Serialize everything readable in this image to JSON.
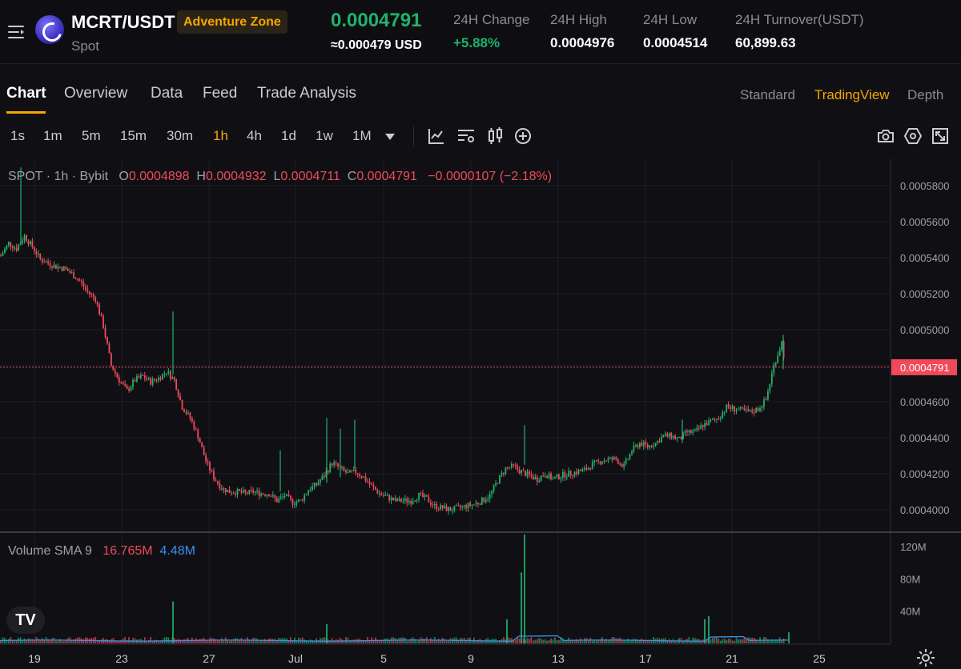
{
  "header": {
    "menu_icon": "hamburger-icon",
    "pair": "MCRT/USDT",
    "zone_badge": "Adventure Zone",
    "market_type": "Spot",
    "last_price": "0.0004791",
    "usd_price": "≈0.000479 USD",
    "stats": [
      {
        "label": "24H Change",
        "value": "+5.88%",
        "color": "#20b26c"
      },
      {
        "label": "24H High",
        "value": "0.0004976",
        "color": "#ffffff"
      },
      {
        "label": "24H Low",
        "value": "0.0004514",
        "color": "#ffffff"
      },
      {
        "label": "24H Turnover(USDT)",
        "value": "60,899.63",
        "color": "#ffffff"
      }
    ]
  },
  "tabs": [
    "Chart",
    "Overview",
    "Data",
    "Feed",
    "Trade Analysis"
  ],
  "active_tab": "Chart",
  "view_modes": [
    "Standard",
    "TradingView",
    "Depth"
  ],
  "active_view_mode": "TradingView",
  "intervals": [
    "1s",
    "1m",
    "5m",
    "15m",
    "30m",
    "1h",
    "4h",
    "1d",
    "1w",
    "1M"
  ],
  "active_interval": "1h",
  "toolbar_icons": [
    "indicators-icon",
    "chart-settings-icon",
    "candle-type-icon",
    "add-icon",
    "camera-icon",
    "settings-hex-icon",
    "fullscreen-icon"
  ],
  "legend": {
    "source": "SPOT · 1h · Bybit",
    "o_label": "O",
    "o": "0.0004898",
    "h_label": "H",
    "h": "0.0004932",
    "l_label": "L",
    "l": "0.0004711",
    "c_label": "C",
    "c": "0.0004791",
    "change": "−0.0000107 (−2.18%)"
  },
  "volume_legend": {
    "label": "Volume SMA 9",
    "vol": "16.765M",
    "sma": "4.48M"
  },
  "colors": {
    "up": "#20b26c",
    "down": "#f04a5a",
    "accent": "#f7a600",
    "sma": "#3b8ff0"
  },
  "chart_data": {
    "type": "candlestick",
    "price_axis_ticks": [
      "0.0005800",
      "0.0005600",
      "0.0005400",
      "0.0005200",
      "0.0005000",
      "0.0004800",
      "0.0004600",
      "0.0004400",
      "0.0004200",
      "0.0004000"
    ],
    "price_range": [
      0.000388,
      0.000595
    ],
    "last_price_label": "0.0004791",
    "last_price": 0.0004791,
    "volume_axis_ticks": [
      "120M",
      "80M",
      "40M"
    ],
    "volume_range": [
      0,
      135
    ],
    "date_ticks": [
      "19",
      "23",
      "27",
      "Jul",
      "5",
      "9",
      "13",
      "17",
      "21",
      "25"
    ],
    "series_close_path": [
      [
        0,
        0.000541
      ],
      [
        2,
        0.000548
      ],
      [
        4,
        0.000545
      ],
      [
        6,
        0.000552
      ],
      [
        8,
        0.000546
      ],
      [
        10,
        0.000539
      ],
      [
        12,
        0.000537
      ],
      [
        14,
        0.000535
      ],
      [
        16,
        0.000534
      ],
      [
        18,
        0.000531
      ],
      [
        20,
        0.000527
      ],
      [
        22,
        0.000521
      ],
      [
        24,
        0.000517
      ],
      [
        26,
        0.000502
      ],
      [
        28,
        0.00048
      ],
      [
        30,
        0.000472
      ],
      [
        32,
        0.000466
      ],
      [
        34,
        0.000472
      ],
      [
        36,
        0.000474
      ],
      [
        38,
        0.000471
      ],
      [
        40,
        0.000473
      ],
      [
        42,
        0.000477
      ],
      [
        44,
        0.000472
      ],
      [
        46,
        0.000457
      ],
      [
        48,
        0.000451
      ],
      [
        50,
        0.000441
      ],
      [
        52,
        0.000427
      ],
      [
        54,
        0.000418
      ],
      [
        56,
        0.000412
      ],
      [
        58,
        0.00041
      ],
      [
        60,
        0.00041
      ],
      [
        62,
        0.000409
      ],
      [
        64,
        0.00041
      ],
      [
        66,
        0.000409
      ],
      [
        68,
        0.000409
      ],
      [
        70,
        0.000405
      ],
      [
        72,
        0.000408
      ],
      [
        74,
        0.000404
      ],
      [
        76,
        0.000405
      ],
      [
        78,
        0.000411
      ],
      [
        80,
        0.000414
      ],
      [
        82,
        0.000419
      ],
      [
        84,
        0.000426
      ],
      [
        86,
        0.000423
      ],
      [
        88,
        0.00042
      ],
      [
        90,
        0.000421
      ],
      [
        92,
        0.000418
      ],
      [
        94,
        0.000413
      ],
      [
        96,
        0.000409
      ],
      [
        98,
        0.000407
      ],
      [
        100,
        0.000405
      ],
      [
        102,
        0.000405
      ],
      [
        104,
        0.000405
      ],
      [
        106,
        0.000408
      ],
      [
        108,
        0.000406
      ],
      [
        110,
        0.000402
      ],
      [
        112,
        0.000401
      ],
      [
        114,
        0.0004
      ],
      [
        116,
        0.000401
      ],
      [
        118,
        0.000402
      ],
      [
        120,
        0.000403
      ],
      [
        122,
        0.000405
      ],
      [
        124,
        0.000408
      ],
      [
        126,
        0.000416
      ],
      [
        128,
        0.000423
      ],
      [
        130,
        0.000424
      ],
      [
        132,
        0.000421
      ],
      [
        134,
        0.000419
      ],
      [
        136,
        0.000417
      ],
      [
        138,
        0.00042
      ],
      [
        140,
        0.000417
      ],
      [
        142,
        0.000419
      ],
      [
        144,
        0.00042
      ],
      [
        146,
        0.000421
      ],
      [
        148,
        0.000422
      ],
      [
        150,
        0.000425
      ],
      [
        152,
        0.000427
      ],
      [
        154,
        0.000428
      ],
      [
        156,
        0.000428
      ],
      [
        158,
        0.000424
      ],
      [
        160,
        0.000433
      ],
      [
        162,
        0.000437
      ],
      [
        164,
        0.000435
      ],
      [
        166,
        0.000437
      ],
      [
        168,
        0.000441
      ],
      [
        170,
        0.000441
      ],
      [
        172,
        0.000439
      ],
      [
        174,
        0.000443
      ],
      [
        176,
        0.000443
      ],
      [
        178,
        0.000447
      ],
      [
        180,
        0.000449
      ],
      [
        182,
        0.000451
      ],
      [
        184,
        0.000457
      ],
      [
        186,
        0.000456
      ],
      [
        188,
        0.000455
      ],
      [
        190,
        0.000454
      ],
      [
        192,
        0.000456
      ],
      [
        194,
        0.000461
      ],
      [
        196,
        0.00048
      ],
      [
        198,
        0.000493
      ],
      [
        199,
        0.000479
      ]
    ],
    "session_slots": 200
  }
}
